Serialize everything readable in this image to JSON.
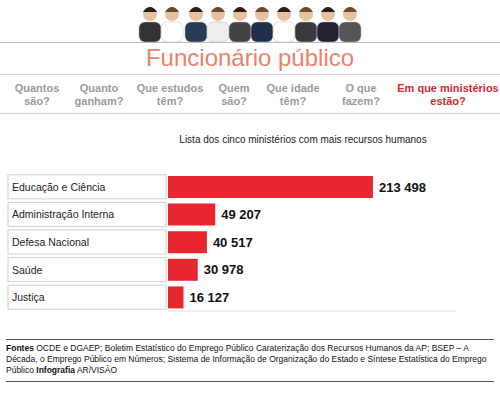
{
  "header": {
    "title": "Funcionário público",
    "nav": [
      "Quantos são?",
      "Quanto ganham?",
      "Que estudos têm?",
      "Quem são?",
      "Que idade têm?",
      "O que fazem?",
      "Em que ministérios estão?"
    ]
  },
  "chart_data": {
    "type": "bar",
    "orientation": "horizontal",
    "title": "Lista dos cinco ministérios com mais recursos humanos",
    "categories": [
      "Educação e Ciência",
      "Administração Interna",
      "Defesa Nacional",
      "Saúde",
      "Justiça"
    ],
    "values": [
      213498,
      49207,
      40517,
      30978,
      16127
    ],
    "value_labels": [
      "213 498",
      "49 207",
      "40 517",
      "30 978",
      "16 127"
    ],
    "color": "#e8262f",
    "xlim": [
      0,
      300000
    ],
    "data_labels": true,
    "tick_labels": "y",
    "grid": false
  },
  "footer": {
    "sources_label": "Fontes",
    "sources": "OCDE e DGAEP; Boletim Estatístico do Emprego Público  Caraterização dos Recursos Humanos da AP; BSEP – A Década, o Emprego Público em Números; Sistema de Informação de Organização do Estado e Síntese Estatística do Emprego Público",
    "credit_label": "Infografia",
    "credit": "AR/VISÃO"
  }
}
